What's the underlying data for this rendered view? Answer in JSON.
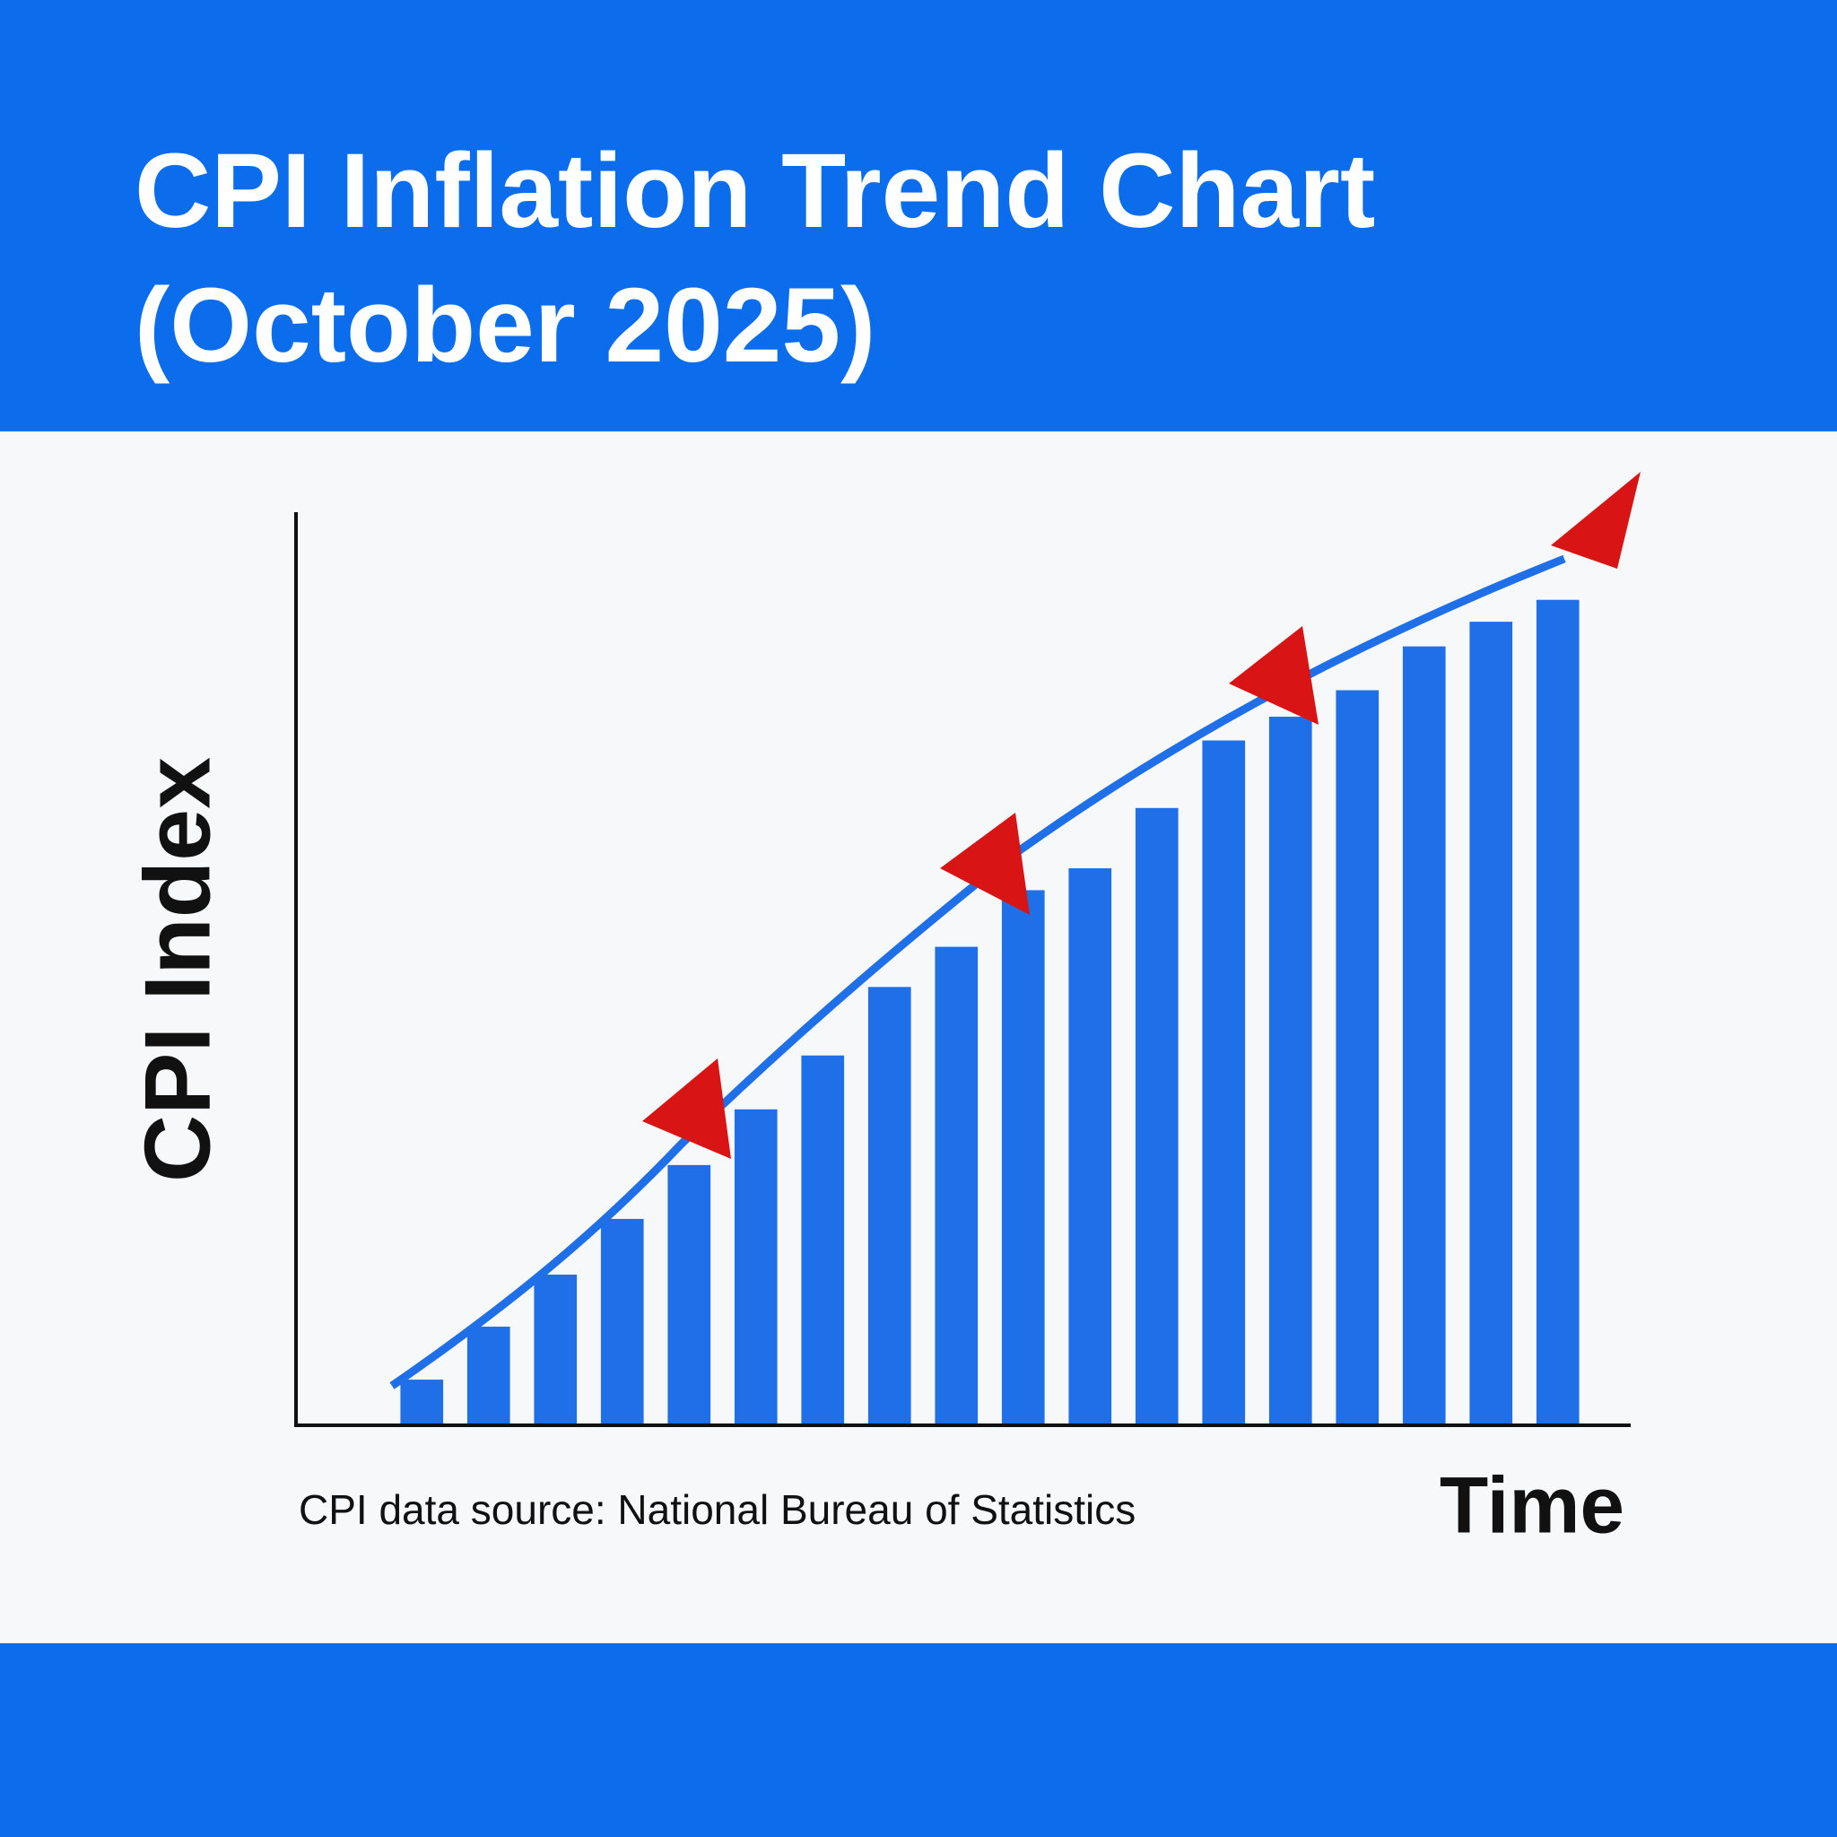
{
  "chart_data": {
    "type": "bar",
    "title": "CPI Inflation Trend Chart (October 2025)",
    "y_label": "CPI Index",
    "x_label": "Time",
    "note": "CPI data source: National Bureau of Statistics",
    "categories": [
      null,
      null,
      null,
      null,
      null,
      null,
      null,
      null,
      null,
      null,
      null,
      null,
      null,
      null,
      null,
      null,
      null,
      null
    ],
    "values": [
      5,
      10.8,
      16.5,
      22.6,
      28.5,
      34.6,
      40.5,
      48,
      52.4,
      58.6,
      61,
      67.6,
      75,
      77.6,
      80.5,
      85.3,
      88,
      90.4
    ],
    "color": "#1f6fe8",
    "ylim": [
      0,
      100
    ],
    "grid": false
  }
}
